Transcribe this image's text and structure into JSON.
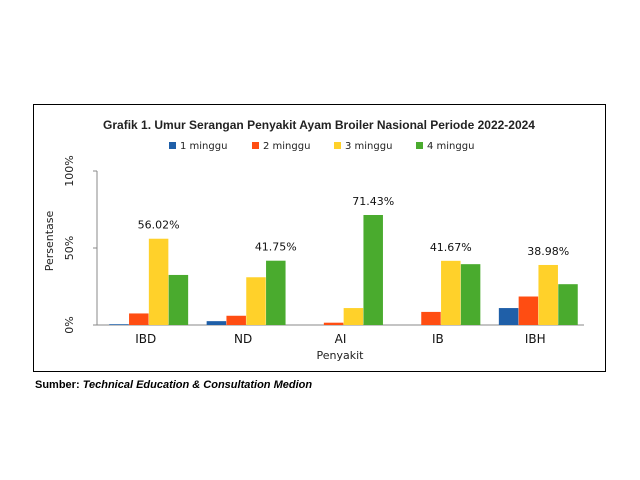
{
  "chart_data": {
    "type": "bar",
    "title": "Grafik 1. Umur Serangan Penyakit Ayam Broiler Nasional Periode 2022-2024",
    "xlabel": "Penyakit",
    "ylabel": "Persentase",
    "ylim": [
      0,
      100
    ],
    "yticks": [
      "0%",
      "50%",
      "100%"
    ],
    "grid": false,
    "legend_position": "top",
    "categories": [
      "IBD",
      "ND",
      "AI",
      "IB",
      "IBH"
    ],
    "series": [
      {
        "name": "1 minggu",
        "color": "#1f5fa8",
        "values": [
          0.5,
          2.5,
          0,
          0,
          11
        ]
      },
      {
        "name": "2 minggu",
        "color": "#ff4d12",
        "values": [
          7.5,
          6,
          1.5,
          8.5,
          18.5
        ]
      },
      {
        "name": "3 minggu",
        "color": "#ffd12a",
        "values": [
          56.02,
          31,
          11,
          41.67,
          38.98
        ]
      },
      {
        "name": "4 minggu",
        "color": "#4aab2e",
        "values": [
          32.5,
          41.75,
          71.43,
          39.5,
          26.5
        ]
      }
    ],
    "data_labels": [
      {
        "category": "IBD",
        "series": "3 minggu",
        "text": "56.02%"
      },
      {
        "category": "ND",
        "series": "4 minggu",
        "text": "41.75%"
      },
      {
        "category": "AI",
        "series": "4 minggu",
        "text": "71.43%"
      },
      {
        "category": "IB",
        "series": "3 minggu",
        "text": "41.67%"
      },
      {
        "category": "IBH",
        "series": "3 minggu",
        "text": "38.98%"
      }
    ]
  },
  "source": {
    "label": "Sumber:",
    "text": "Technical Education & Consultation Medion"
  }
}
